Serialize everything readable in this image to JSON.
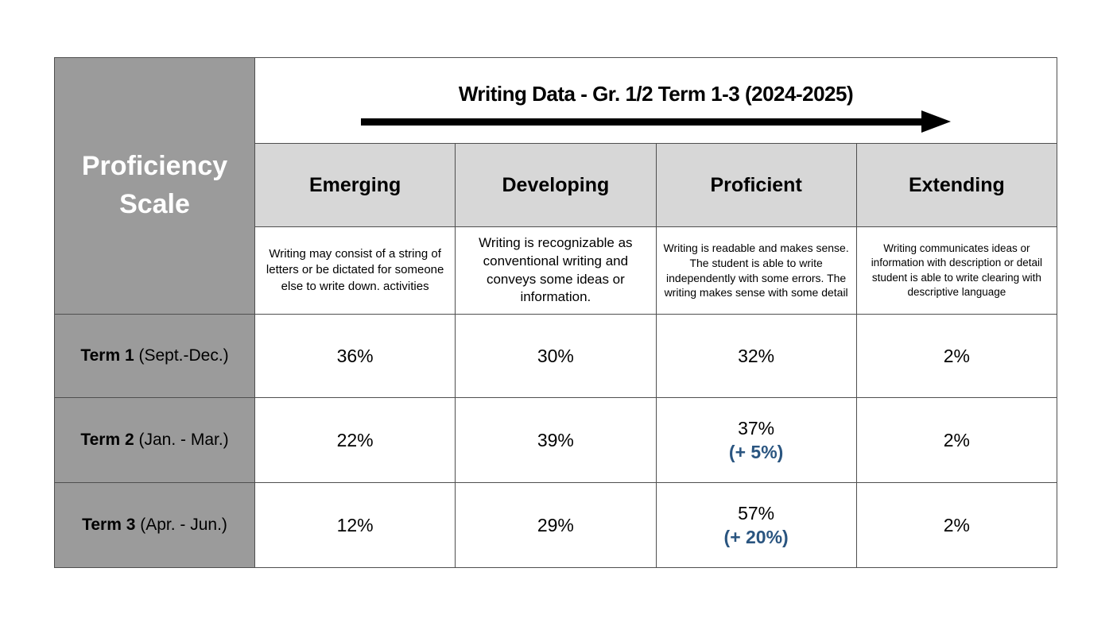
{
  "table": {
    "corner_label": "Proficiency Scale",
    "title": "Writing Data - Gr. 1/2 Term 1-3 (2024-2025)",
    "columns": [
      {
        "label": "Emerging",
        "description": "Writing may consist of a string of letters or be dictated for someone else to write down. activities"
      },
      {
        "label": "Developing",
        "description": "Writing is recognizable as conventional writing and conveys some ideas or information."
      },
      {
        "label": "Proficient",
        "description": "Writing is readable and makes sense.  The student is able to write independently with some errors.  The writing makes sense with some detail"
      },
      {
        "label": "Extending",
        "description": "Writing communicates ideas or information with  description or detail student is able to write clearing  with descriptive language"
      }
    ],
    "rows": [
      {
        "term": "Term 1",
        "period": " (Sept.-Dec.)",
        "values": [
          "36%",
          "30%",
          "32%",
          "2%"
        ],
        "proficient_delta": ""
      },
      {
        "term": "Term 2",
        "period": " (Jan. - Mar.)",
        "values": [
          "22%",
          "39%",
          "37%",
          "2%"
        ],
        "proficient_delta": "(+ 5%)"
      },
      {
        "term": "Term 3",
        "period": " (Apr. - Jun.)",
        "values": [
          "12%",
          "29%",
          "57%",
          "2%"
        ],
        "proficient_delta": "(+ 20%)"
      }
    ],
    "colors": {
      "corner_background": "#9b9b9b",
      "header_background": "#d7d7d7",
      "border": "#4f4f4f",
      "delta_accent": "#2a5580",
      "arrow": "#000000"
    }
  },
  "chart_data": {
    "type": "table",
    "title": "Writing Data - Gr. 1/2 Term 1-3 (2024-2025)",
    "row_axis_label": "Proficiency Scale",
    "categories": [
      "Emerging",
      "Developing",
      "Proficient",
      "Extending"
    ],
    "category_descriptions": [
      "Writing may consist of a string of letters or be dictated for someone else to write down. activities",
      "Writing is recognizable as conventional writing and conveys some ideas or information.",
      "Writing is readable and makes sense.  The student is able to write independently with some errors.  The writing makes sense with some detail",
      "Writing communicates ideas or information with  description or detail student is able to write clearing  with descriptive language"
    ],
    "rows": [
      {
        "label": "Term 1 (Sept.-Dec.)",
        "values_pct": [
          36,
          30,
          32,
          2
        ]
      },
      {
        "label": "Term 2 (Jan. - Mar.)",
        "values_pct": [
          22,
          39,
          37,
          2
        ],
        "proficient_change_pct": 5
      },
      {
        "label": "Term 3 (Apr. - Jun.)",
        "values_pct": [
          12,
          29,
          57,
          2
        ],
        "proficient_change_pct": 20
      }
    ]
  }
}
